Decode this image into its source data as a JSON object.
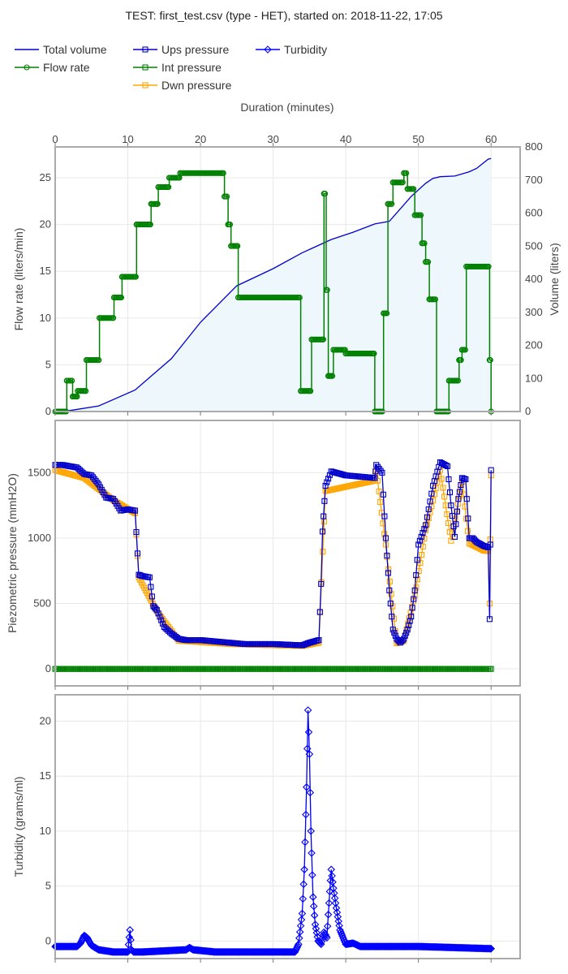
{
  "title": "TEST: first_test.csv (type - HET), started on: 2018-11-22, 17:05",
  "colors": {
    "total_volume": "#0000cc",
    "volume_fill": "#eef7fc",
    "flow_rate": "#008000",
    "ups_pressure": "#0000cc",
    "int_pressure": "#008000",
    "dwn_pressure": "#ffa500",
    "turbidity": "#0000ff",
    "grid": "#e8e8e8",
    "frame": "#aaaaaa"
  },
  "chart_data": [
    {
      "type": "line",
      "panel": "flow",
      "x_title": "Duration (minutes)",
      "x_ticks": [
        0,
        10,
        20,
        30,
        40,
        50,
        60
      ],
      "xlim": [
        0,
        64
      ],
      "ylabel": "Flow rate (liters/min)",
      "ylim": [
        0,
        28.3
      ],
      "y_ticks": [
        0,
        5,
        10,
        15,
        20,
        25
      ],
      "y2label": "Volume (liters)",
      "y2lim": [
        0,
        800
      ],
      "y2_ticks": [
        0,
        100,
        200,
        300,
        400,
        500,
        600,
        700,
        800
      ],
      "legend": [
        "Total volume",
        "Flow rate"
      ],
      "series": [
        {
          "name": "Flow rate",
          "axis": "y",
          "x": [
            0,
            1.5,
            1.6,
            2.3,
            2.4,
            3.0,
            3.1,
            4.2,
            4.3,
            6.0,
            6.1,
            8.0,
            8.1,
            9.0,
            9.2,
            11.0,
            11.2,
            13.0,
            13.2,
            14.0,
            14.2,
            15.5,
            15.7,
            17.0,
            17.2,
            23.0,
            23.3,
            23.8,
            24.2,
            25.0,
            25.2,
            33.5,
            33.8,
            35.0,
            35.3,
            36.8,
            37.0,
            37.3,
            37.6,
            38.0,
            38.3,
            39.8,
            40.0,
            43.8,
            44.0,
            44.6,
            45.2,
            45.8,
            46.5,
            48.0,
            48.5,
            49.5,
            50.5,
            51.0,
            51.5,
            52.5,
            52.7,
            54.0,
            54.2,
            55.0,
            55.6,
            56.0,
            56.6,
            59.5,
            59.8,
            60.0,
            64
          ],
          "values": [
            0,
            0,
            3.3,
            3.3,
            1.6,
            1.6,
            2.2,
            2.2,
            5.5,
            5.5,
            10,
            10,
            12.2,
            12.2,
            14.4,
            14.4,
            20,
            20,
            22.2,
            22.2,
            24,
            24,
            25,
            25,
            25.5,
            25.5,
            23,
            20,
            17.7,
            17.7,
            12.2,
            12.2,
            2.2,
            2.2,
            7.7,
            7.7,
            23.3,
            13,
            3.8,
            3.8,
            6.6,
            6.6,
            6.2,
            6.2,
            0,
            0,
            10.5,
            22.2,
            24.5,
            25.5,
            23.8,
            21,
            18,
            16,
            12,
            0,
            0,
            0,
            3.3,
            3.3,
            5.5,
            6.6,
            15.5,
            15.5,
            5.5,
            0,
            0
          ]
        },
        {
          "name": "Total volume",
          "axis": "y2",
          "x": [
            0,
            2,
            6,
            11,
            16,
            20,
            25,
            30,
            34,
            38,
            41,
            44,
            46,
            49,
            51,
            52,
            53,
            55,
            57,
            58,
            59.6,
            60
          ],
          "values": [
            0,
            3,
            17,
            65,
            160,
            270,
            380,
            432,
            480,
            520,
            542,
            567,
            575,
            650,
            690,
            705,
            710,
            712,
            725,
            735,
            763,
            765
          ]
        }
      ]
    },
    {
      "type": "line",
      "panel": "pressure",
      "ylabel": "Piezometric pressure (mmH2O)",
      "ylim": [
        -130,
        1900
      ],
      "y_ticks": [
        0,
        500,
        1000,
        1500
      ],
      "legend": [
        "Ups pressure",
        "Int pressure",
        "Dwn pressure"
      ],
      "series": [
        {
          "name": "Ups pressure",
          "x": [
            0,
            1,
            2,
            3,
            4,
            5,
            6,
            7,
            8,
            9,
            10,
            11,
            11.5,
            12,
            13,
            13.5,
            14,
            15,
            16,
            17,
            18,
            20,
            22,
            24,
            26,
            30,
            34,
            35,
            36.3,
            36.6,
            36.8,
            37.2,
            38,
            40,
            44,
            44.2,
            45,
            45.5,
            46,
            46.5,
            47,
            47.5,
            48,
            48.5,
            49,
            49.5,
            50,
            51,
            52,
            53,
            54,
            54.5,
            55,
            55.5,
            56,
            56.5,
            57,
            57.5,
            58,
            59,
            59.6,
            59.8,
            60
          ],
          "values": [
            1560,
            1560,
            1550,
            1540,
            1490,
            1480,
            1410,
            1310,
            1300,
            1210,
            1220,
            1210,
            720,
            710,
            700,
            480,
            450,
            320,
            270,
            230,
            220,
            220,
            210,
            200,
            190,
            190,
            180,
            200,
            220,
            650,
            1050,
            1400,
            1510,
            1480,
            1460,
            1560,
            1500,
            1000,
            600,
            300,
            230,
            200,
            230,
            300,
            400,
            600,
            950,
            1100,
            1400,
            1580,
            1550,
            1250,
            1010,
            1300,
            1460,
            1450,
            1000,
            1000,
            970,
            940,
            930,
            380,
            1520
          ]
        },
        {
          "name": "Dwn pressure",
          "x": [
            0,
            4,
            8,
            11,
            11.5,
            14,
            17,
            24,
            34,
            36.3,
            37.2,
            44,
            44.2,
            45.5,
            47,
            48,
            49.5,
            51,
            53,
            54.5,
            56,
            57,
            59,
            59.6,
            59.8,
            60
          ],
          "values": [
            1520,
            1460,
            1290,
            1190,
            700,
            440,
            215,
            190,
            175,
            200,
            1360,
            1440,
            1520,
            950,
            195,
            215,
            560,
            1060,
            1520,
            980,
            1430,
            960,
            905,
            900,
            500,
            1480
          ]
        },
        {
          "name": "Int pressure",
          "x": [
            0,
            10,
            20,
            30,
            40,
            50,
            60
          ],
          "values": [
            0,
            0,
            0,
            0,
            0,
            0,
            0
          ]
        }
      ]
    },
    {
      "type": "line",
      "panel": "turbidity",
      "ylabel": "Turbidity (grams/ml)",
      "ylim": [
        -1.6,
        22.4
      ],
      "y_ticks": [
        0,
        5,
        10,
        15,
        20
      ],
      "legend": [
        "Turbidity"
      ],
      "series": [
        {
          "name": "Turbidity",
          "x": [
            0,
            3,
            3.5,
            4.0,
            4.4,
            5.0,
            6,
            8,
            10,
            10.3,
            10.5,
            10.8,
            12,
            15,
            18,
            18.5,
            19,
            22,
            26,
            30,
            33,
            33.5,
            34,
            34.3,
            34.6,
            34.8,
            35.0,
            35.2,
            35.5,
            35.8,
            36.2,
            36.6,
            37.0,
            37.4,
            37.8,
            38.0,
            38.3,
            38.7,
            39.2,
            40,
            41,
            42,
            45,
            50,
            55,
            60
          ],
          "values": [
            -0.5,
            -0.5,
            -0.2,
            0.5,
            0.3,
            -0.4,
            -0.8,
            -1.0,
            -1.0,
            1.0,
            -0.8,
            -1.0,
            -1.0,
            -0.9,
            -0.8,
            -0.6,
            -0.8,
            -1.0,
            -1.0,
            -1.0,
            -1.0,
            -0.3,
            2.5,
            6.5,
            14,
            21,
            17,
            10,
            4,
            1.5,
            0,
            -0.3,
            0.8,
            0.3,
            4.5,
            6.5,
            4.8,
            3.0,
            1.0,
            -0.3,
            -0.2,
            -0.5,
            -0.5,
            -0.5,
            -0.6,
            -0.7
          ]
        }
      ]
    }
  ]
}
